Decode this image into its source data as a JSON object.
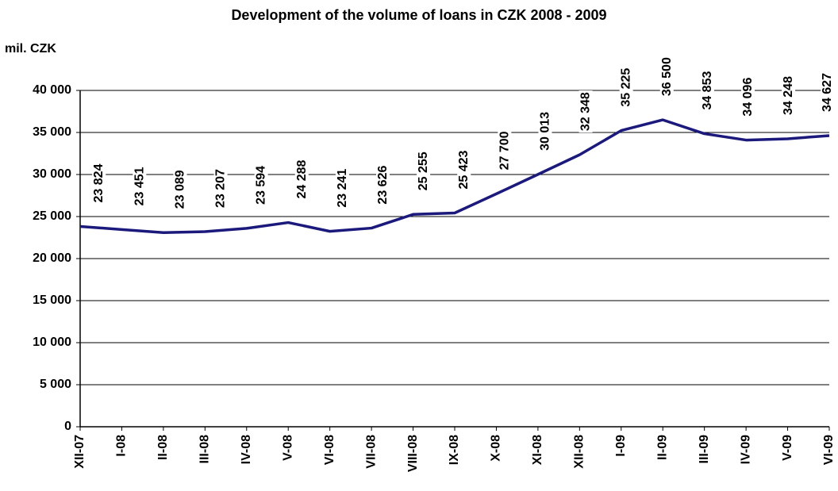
{
  "chart_data": {
    "type": "line",
    "title": "Development of the volume of loans in CZK 2008 - 2009",
    "y_axis_label": "mil. CZK",
    "categories": [
      "XII-07",
      "I-08",
      "II-08",
      "III-08",
      "IV-08",
      "V-08",
      "VI-08",
      "VII-08",
      "VIII-08",
      "IX-08",
      "X-08",
      "XI-08",
      "XII-08",
      "I-09",
      "II-09",
      "III-09",
      "IV-09",
      "V-09",
      "VI-09"
    ],
    "series": [
      {
        "color": "#1b1a7c",
        "values": [
          23824,
          23451,
          23089,
          23207,
          23594,
          24288,
          23241,
          23626,
          25255,
          25423,
          27700,
          30013,
          32348,
          35225,
          36500,
          34853,
          34096,
          34248,
          34627
        ],
        "value_labels": [
          "23 824",
          "23 451",
          "23 089",
          "23 207",
          "23 594",
          "24 288",
          "23 241",
          "23 626",
          "25 255",
          "25 423",
          "27 700",
          "30 013",
          "32 348",
          "35 225",
          "36 500",
          "34 853",
          "34 096",
          "34 248",
          "34 627"
        ]
      }
    ],
    "ylim": [
      0,
      40000
    ],
    "yticks": [
      {
        "value": 0,
        "label": "0"
      },
      {
        "value": 5000,
        "label": "5 000"
      },
      {
        "value": 10000,
        "label": "10 000"
      },
      {
        "value": 15000,
        "label": "15 000"
      },
      {
        "value": 20000,
        "label": "20 000"
      },
      {
        "value": 25000,
        "label": "25 000"
      },
      {
        "value": 30000,
        "label": "30 000"
      },
      {
        "value": 35000,
        "label": "35 000"
      },
      {
        "value": 40000,
        "label": "40 000"
      }
    ],
    "grid": true
  }
}
